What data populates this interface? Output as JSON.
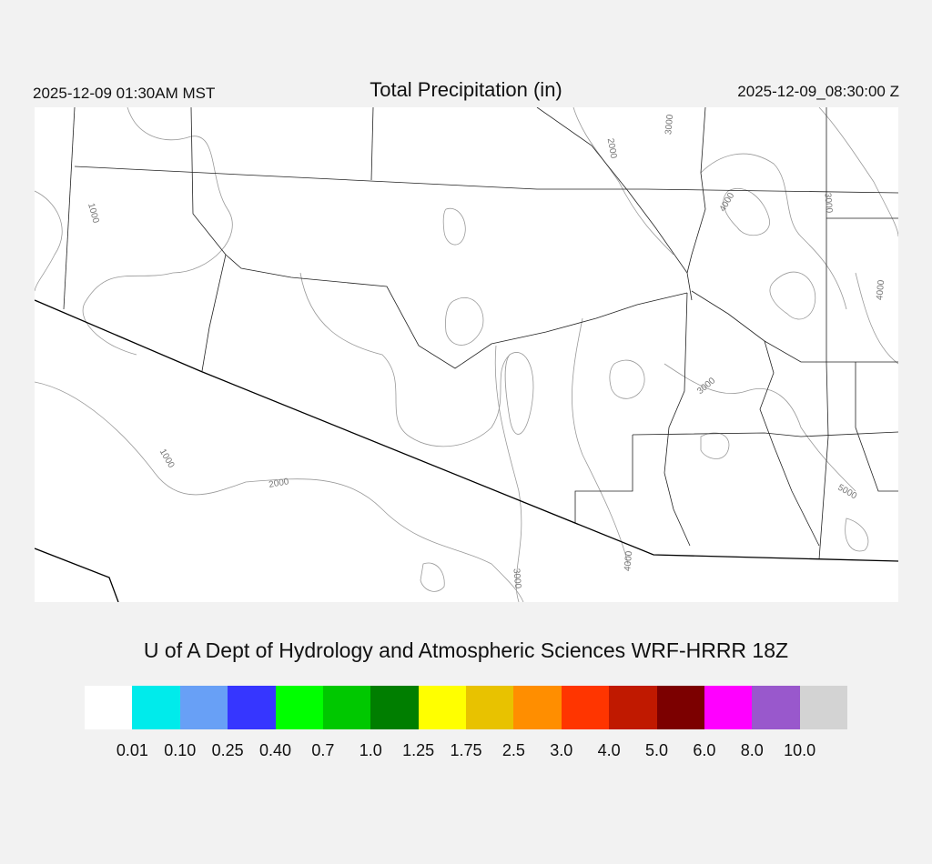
{
  "header": {
    "local_time": "2025-12-09 01:30AM MST",
    "title": "Total Precipitation (in)",
    "valid_time": "2025-12-09_08:30:00 Z"
  },
  "credit": "U of A Dept of Hydrology and Atmospheric Sciences WRF-HRRR 18Z",
  "map": {
    "contour_labels": [
      "1000",
      "2000",
      "3000",
      "4000",
      "3000",
      "4000",
      "3000",
      "1000",
      "2000",
      "5000",
      "3000",
      "4000"
    ],
    "precipitation_shaded": false
  },
  "colorbar": {
    "colors": [
      "#ffffff",
      "#00ebeb",
      "#68a0f6",
      "#3636ff",
      "#00ff00",
      "#00c800",
      "#007e00",
      "#ffff00",
      "#e8c200",
      "#ff8e00",
      "#ff3500",
      "#c01900",
      "#7c0000",
      "#ff00ff",
      "#9958cc",
      "#d3d3d3"
    ],
    "labels": [
      "0.01",
      "0.10",
      "0.25",
      "0.40",
      "0.7",
      "1.0",
      "1.25",
      "1.75",
      "2.5",
      "3.0",
      "4.0",
      "5.0",
      "6.0",
      "8.0",
      "10.0"
    ]
  }
}
